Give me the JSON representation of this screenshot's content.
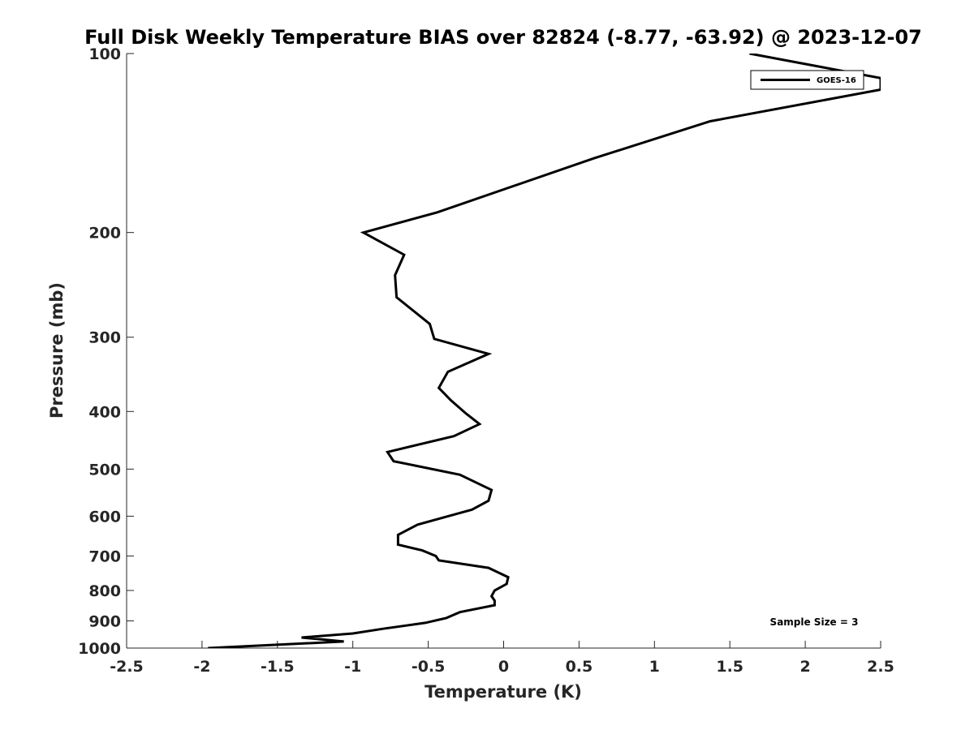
{
  "chart_data": {
    "type": "line",
    "title": "Full Disk Weekly Temperature BIAS over 82824 (-8.77, -63.92) @ 2023-12-07",
    "xlabel": "Temperature (K)",
    "ylabel": "Pressure (mb)",
    "xlim": [
      -2.5,
      2.5
    ],
    "ylim": [
      100,
      1000
    ],
    "y_scale": "log",
    "y_reversed": true,
    "xticks": [
      -2.5,
      -2,
      -1.5,
      -1,
      -0.5,
      0,
      0.5,
      1,
      1.5,
      2,
      2.5
    ],
    "xtick_labels": [
      "-2.5",
      "-2",
      "-1.5",
      "-1",
      "-0.5",
      "0",
      "0.5",
      "1",
      "1.5",
      "2",
      "2.5"
    ],
    "yticks": [
      100,
      200,
      300,
      400,
      500,
      600,
      700,
      800,
      900,
      1000
    ],
    "ytick_labels": [
      "100",
      "200",
      "300",
      "400",
      "500",
      "600",
      "700",
      "800",
      "900",
      "1000"
    ],
    "grid": false,
    "legend_position": "top-right",
    "series": [
      {
        "name": "GOES-16",
        "color": "#000000",
        "points": [
          {
            "x": 1.63,
            "y": 100
          },
          {
            "x": 2.5,
            "y": 110
          },
          {
            "x": 2.5,
            "y": 115
          },
          {
            "x": 1.37,
            "y": 130
          },
          {
            "x": 0.6,
            "y": 150
          },
          {
            "x": -0.44,
            "y": 185
          },
          {
            "x": -0.93,
            "y": 200
          },
          {
            "x": -0.66,
            "y": 218
          },
          {
            "x": -0.72,
            "y": 236
          },
          {
            "x": -0.71,
            "y": 257
          },
          {
            "x": -0.49,
            "y": 285
          },
          {
            "x": -0.46,
            "y": 302
          },
          {
            "x": -0.1,
            "y": 320
          },
          {
            "x": -0.37,
            "y": 343
          },
          {
            "x": -0.43,
            "y": 365
          },
          {
            "x": -0.35,
            "y": 383
          },
          {
            "x": -0.25,
            "y": 403
          },
          {
            "x": -0.16,
            "y": 420
          },
          {
            "x": -0.33,
            "y": 440
          },
          {
            "x": -0.77,
            "y": 468
          },
          {
            "x": -0.73,
            "y": 485
          },
          {
            "x": -0.29,
            "y": 511
          },
          {
            "x": -0.08,
            "y": 542
          },
          {
            "x": -0.1,
            "y": 565
          },
          {
            "x": -0.21,
            "y": 585
          },
          {
            "x": -0.57,
            "y": 620
          },
          {
            "x": -0.7,
            "y": 645
          },
          {
            "x": -0.7,
            "y": 670
          },
          {
            "x": -0.54,
            "y": 685
          },
          {
            "x": -0.45,
            "y": 700
          },
          {
            "x": -0.43,
            "y": 712
          },
          {
            "x": -0.1,
            "y": 733
          },
          {
            "x": 0.03,
            "y": 760
          },
          {
            "x": 0.02,
            "y": 780
          },
          {
            "x": -0.06,
            "y": 800
          },
          {
            "x": -0.08,
            "y": 818
          },
          {
            "x": -0.06,
            "y": 832
          },
          {
            "x": -0.06,
            "y": 847
          },
          {
            "x": -0.29,
            "y": 870
          },
          {
            "x": -0.38,
            "y": 890
          },
          {
            "x": -0.52,
            "y": 907
          },
          {
            "x": -0.8,
            "y": 928
          },
          {
            "x": -1.0,
            "y": 945
          },
          {
            "x": -1.34,
            "y": 960
          },
          {
            "x": -1.06,
            "y": 975
          },
          {
            "x": -1.96,
            "y": 1000
          }
        ]
      }
    ],
    "annotation": "Sample Size = 3"
  }
}
